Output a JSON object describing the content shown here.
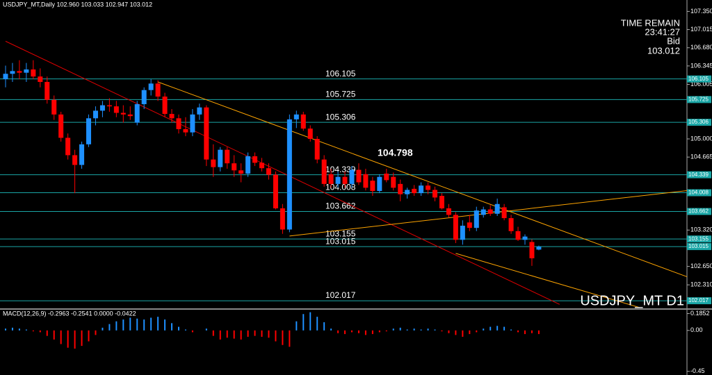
{
  "chart_data": [
    {
      "type": "candlestick",
      "title": "USDJPY_MT,Daily  102.960 103.033 102.947 103.012",
      "watermark": "USDJPY_MT D1",
      "time_remain_label": "TIME REMAIN",
      "time_remain": "23:41:27",
      "bid_label": "Bid",
      "bid": 103.012,
      "annotation": 104.798,
      "up_color": "#1e90ff",
      "down_color": "#ff0000",
      "level_color": "#1aa6a6",
      "ylim": [
        101.89,
        107.56
      ],
      "yticks": [
        {
          "value": 107.35,
          "label": "107.350"
        },
        107.015,
        {
          "value": 106.68,
          "label": "106.680"
        },
        106.345,
        106.005,
        {
          "value": 105.0,
          "label": "105.000"
        },
        104.665,
        {
          "value": 103.32,
          "label": "103.320"
        },
        {
          "value": 102.65,
          "label": "102.650"
        },
        {
          "value": 102.31,
          "label": "102.310"
        }
      ],
      "levels": [
        106.105,
        105.725,
        105.306,
        104.339,
        104.008,
        103.662,
        103.155,
        103.015,
        102.017
      ],
      "open": [
        106.1,
        106.2,
        106.25,
        106.22,
        106.28,
        106.15,
        106.05,
        105.72,
        105.45,
        105.02,
        104.7,
        104.52,
        104.9,
        105.38,
        105.52,
        105.62,
        105.6,
        105.48,
        105.45,
        105.3,
        105.64,
        105.9,
        106.02,
        105.78,
        105.46,
        105.38,
        105.18,
        105.12,
        105.45,
        105.58,
        104.62,
        104.48,
        104.8,
        104.55,
        104.42,
        104.36,
        104.68,
        104.56,
        104.46,
        104.34,
        103.72,
        103.33,
        105.36,
        105.45,
        105.19,
        105.0,
        104.62,
        104.35,
        104.17,
        104.3,
        104.17,
        104.43,
        104.35,
        104.23,
        104.04,
        104.36,
        104.3,
        104.17,
        103.98,
        104.08,
        104.0,
        104.14,
        104.06,
        103.95,
        103.72,
        103.6,
        103.14,
        103.46,
        103.36,
        103.6,
        103.7,
        103.62,
        103.74,
        103.54,
        103.3,
        103.14,
        103.1,
        102.96
      ],
      "high": [
        106.35,
        106.4,
        106.45,
        106.4,
        106.45,
        106.3,
        106.15,
        105.8,
        105.5,
        105.1,
        104.8,
        104.95,
        105.45,
        105.6,
        105.7,
        105.75,
        105.7,
        105.62,
        105.6,
        105.7,
        105.95,
        106.1,
        106.08,
        105.85,
        105.55,
        105.45,
        105.4,
        105.55,
        105.65,
        105.62,
        104.9,
        104.85,
        104.85,
        104.7,
        104.55,
        104.75,
        104.75,
        104.65,
        104.55,
        104.4,
        103.8,
        105.45,
        105.52,
        105.5,
        105.25,
        105.05,
        104.7,
        104.45,
        104.4,
        104.4,
        104.5,
        104.55,
        104.45,
        104.3,
        104.35,
        104.45,
        104.38,
        104.25,
        104.1,
        104.15,
        104.2,
        104.2,
        104.12,
        104.0,
        103.8,
        103.65,
        103.5,
        103.6,
        103.75,
        103.75,
        103.78,
        103.9,
        103.8,
        103.6,
        103.38,
        103.24,
        103.15,
        103.033
      ],
      "low": [
        105.95,
        106.05,
        106.1,
        106.05,
        106.1,
        105.95,
        105.65,
        105.35,
        104.95,
        104.62,
        104.0,
        104.45,
        104.85,
        105.25,
        105.4,
        105.5,
        105.4,
        105.3,
        105.35,
        105.25,
        105.55,
        105.8,
        105.7,
        105.4,
        105.3,
        105.1,
        105.05,
        105.05,
        105.35,
        104.5,
        104.3,
        104.4,
        104.45,
        104.3,
        104.2,
        104.3,
        104.5,
        104.4,
        104.25,
        103.7,
        103.25,
        103.28,
        105.2,
        105.15,
        104.95,
        104.55,
        104.12,
        104.1,
        104.1,
        104.1,
        104.1,
        104.15,
        104.05,
        103.95,
        104.0,
        104.2,
        104.05,
        103.85,
        103.9,
        103.95,
        103.95,
        103.98,
        103.85,
        103.7,
        103.55,
        103.08,
        103.05,
        103.3,
        103.3,
        103.55,
        103.58,
        103.58,
        103.5,
        103.25,
        103.12,
        103.05,
        102.66,
        102.947
      ],
      "close": [
        106.2,
        106.25,
        106.22,
        106.28,
        106.15,
        106.05,
        105.72,
        105.45,
        105.02,
        104.7,
        104.52,
        104.9,
        105.38,
        105.52,
        105.62,
        105.6,
        105.48,
        105.45,
        105.42,
        105.64,
        105.9,
        106.02,
        105.78,
        105.46,
        105.38,
        105.18,
        105.12,
        105.45,
        105.58,
        104.62,
        104.48,
        104.8,
        104.55,
        104.42,
        104.36,
        104.68,
        104.56,
        104.46,
        104.34,
        103.72,
        103.33,
        105.36,
        105.45,
        105.19,
        105.0,
        104.62,
        104.17,
        104.17,
        104.3,
        104.17,
        104.43,
        104.2,
        104.1,
        104.04,
        104.3,
        104.24,
        104.1,
        103.98,
        104.06,
        104.0,
        104.14,
        104.06,
        103.92,
        103.72,
        103.6,
        103.14,
        103.4,
        103.36,
        103.68,
        103.7,
        103.62,
        103.8,
        103.54,
        103.3,
        103.14,
        103.2,
        102.8,
        103.012
      ],
      "trendlines": [
        {
          "color": "#e00000",
          "x": [
            0,
            80
          ],
          "y": [
            106.8,
            101.95
          ]
        },
        {
          "color": "#ffa500",
          "x": [
            22,
            102
          ],
          "y": [
            106.05,
            102.29
          ]
        },
        {
          "color": "#ffa500",
          "x": [
            65,
            94
          ],
          "y": [
            102.89,
            101.8
          ]
        },
        {
          "color": "#ffa500",
          "x": [
            41,
            102
          ],
          "y": [
            103.21,
            104.1
          ]
        }
      ]
    },
    {
      "type": "bar",
      "title": "MACD(12,26,9) -0.2963 -0.2541 0.0000 -0.0422",
      "pos_color": "#1e90ff",
      "neg_color": "#ff0000",
      "ylim": [
        -0.49,
        0.22
      ],
      "yticks": [
        0.1852,
        {
          "value": 0,
          "label": "0.00"
        },
        -0.45
      ],
      "values": [
        0.02,
        0.03,
        0.02,
        0.01,
        -0.01,
        -0.02,
        -0.06,
        -0.1,
        -0.15,
        -0.19,
        -0.2,
        -0.17,
        -0.12,
        -0.05,
        0.03,
        0.07,
        0.1,
        0.12,
        0.14,
        0.13,
        0.12,
        0.14,
        0.15,
        0.12,
        0.08,
        0.04,
        0.01,
        -0.02,
        0.0,
        0.02,
        -0.06,
        -0.1,
        -0.08,
        -0.09,
        -0.1,
        -0.07,
        -0.06,
        -0.07,
        -0.08,
        -0.12,
        -0.16,
        -0.18,
        0.1,
        0.18,
        0.2,
        0.15,
        0.09,
        0.02,
        -0.03,
        -0.04,
        -0.02,
        -0.03,
        -0.05,
        -0.04,
        -0.02,
        -0.01,
        0.02,
        0.03,
        0.01,
        0.02,
        0.01,
        0.02,
        0.01,
        -0.01,
        -0.03,
        -0.05,
        -0.07,
        -0.04,
        -0.02,
        0.02,
        0.04,
        0.05,
        0.04,
        0.01,
        -0.02,
        -0.04,
        -0.03,
        -0.04
      ]
    }
  ]
}
